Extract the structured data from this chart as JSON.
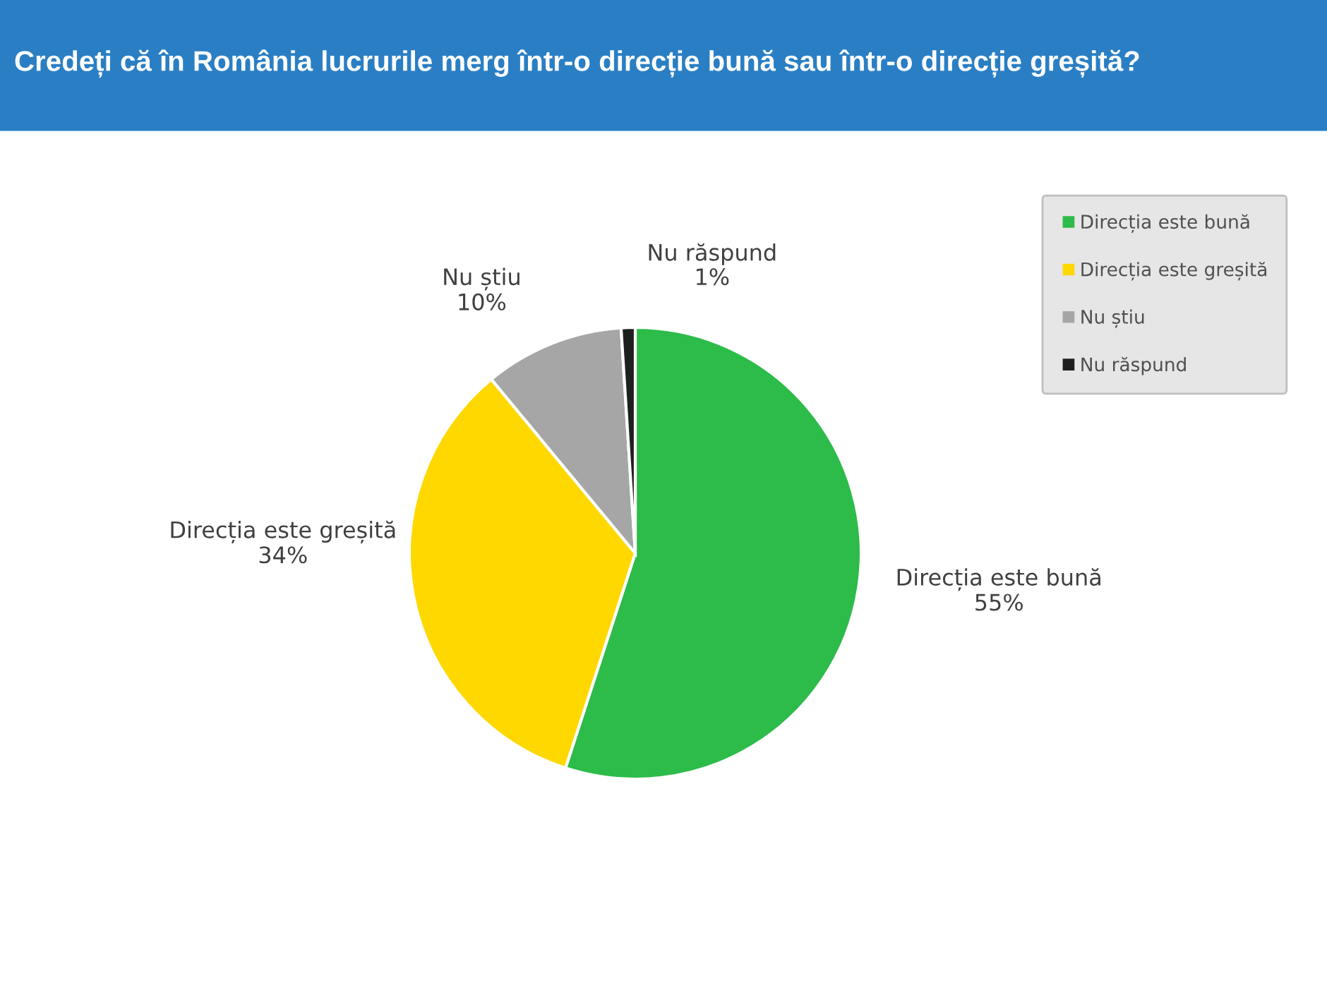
{
  "chart_data": {
    "type": "pie",
    "title": "Credeți că în România lucrurile merg într-o direcție bună sau într-o direcție greșită?",
    "categories": [
      "Direcția este bună",
      "Direcția este greșită",
      "Nu știu",
      "Nu răspund"
    ],
    "values": [
      55,
      34,
      10,
      1
    ],
    "colors": [
      "#2dbb4a",
      "#ffd800",
      "#a6a6a6",
      "#1f1f1f"
    ],
    "value_labels": [
      "55%",
      "34%",
      "10%",
      "1%"
    ],
    "legend": "top right"
  }
}
